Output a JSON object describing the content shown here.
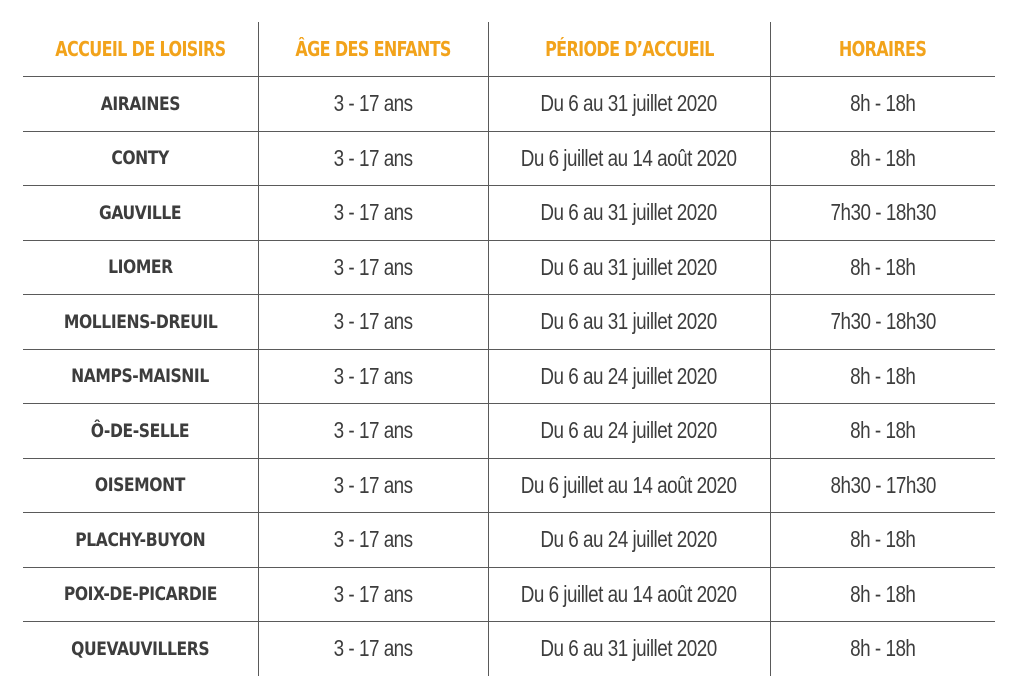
{
  "table": {
    "headers": [
      "ACCUEIL DE LOISIRS",
      "ÂGE DES ENFANTS",
      "PÉRIODE D’ACCUEIL",
      "HORAIRES"
    ],
    "rows": [
      {
        "name": "AIRAINES",
        "age": "3 - 17 ans",
        "period": "Du 6 au 31 juillet 2020",
        "hours": "8h - 18h"
      },
      {
        "name": "CONTY",
        "age": "3 - 17 ans",
        "period": "Du 6 juillet au 14 août 2020",
        "hours": "8h - 18h"
      },
      {
        "name": "GAUVILLE",
        "age": "3 - 17 ans",
        "period": "Du 6 au 31 juillet 2020",
        "hours": "7h30 - 18h30"
      },
      {
        "name": "LIOMER",
        "age": "3 - 17 ans",
        "period": "Du 6 au 31 juillet 2020",
        "hours": "8h - 18h"
      },
      {
        "name": "MOLLIENS-DREUIL",
        "age": "3 - 17 ans",
        "period": "Du 6 au 31 juillet 2020",
        "hours": "7h30 - 18h30"
      },
      {
        "name": "NAMPS-MAISNIL",
        "age": "3 - 17 ans",
        "period": "Du 6 au 24 juillet 2020",
        "hours": "8h - 18h"
      },
      {
        "name": "Ô-DE-SELLE",
        "age": "3 - 17 ans",
        "period": "Du 6 au 24 juillet 2020",
        "hours": "8h - 18h"
      },
      {
        "name": "OISEMONT",
        "age": "3 - 17 ans",
        "period": "Du 6 juillet au 14 août 2020",
        "hours": "8h30 - 17h30"
      },
      {
        "name": "PLACHY-BUYON",
        "age": "3 - 17 ans",
        "period": "Du 6 au 24 juillet 2020",
        "hours": "8h - 18h"
      },
      {
        "name": "POIX-DE-PICARDIE",
        "age": "3 - 17 ans",
        "period": "Du 6 juillet au 14 août 2020",
        "hours": "8h - 18h"
      },
      {
        "name": "QUEVAUVILLERS",
        "age": "3 - 17 ans",
        "period": "Du 6 au 31 juillet 2020",
        "hours": "8h - 18h"
      }
    ]
  },
  "colors": {
    "header_text": "#f2a31b",
    "body_text": "#3d3d3d",
    "rule": "#5a5a5a"
  }
}
